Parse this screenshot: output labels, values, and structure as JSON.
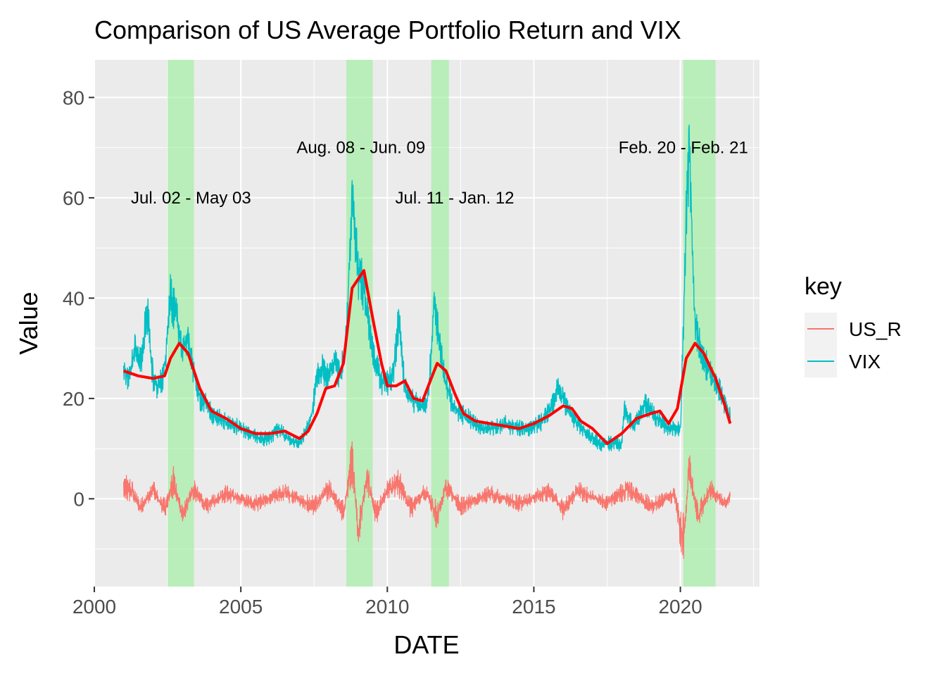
{
  "chart_data": {
    "type": "line",
    "title": "Comparison of US Average Portfolio Return and VIX",
    "xlabel": "DATE",
    "ylabel": "Value",
    "xlim": [
      2000.0,
      2022.7
    ],
    "ylim": [
      -17.5,
      87.5
    ],
    "x_ticks": [
      2000,
      2005,
      2010,
      2015,
      2020
    ],
    "x_tick_labels": [
      "2000",
      "2005",
      "2010",
      "2015",
      "2020"
    ],
    "y_ticks": [
      0,
      20,
      40,
      60,
      80
    ],
    "y_tick_labels": [
      "0",
      "20",
      "40",
      "60",
      "80"
    ],
    "grid": true,
    "panel_background": "#ebebeb",
    "legend": {
      "title": "key",
      "position": "right",
      "entries": [
        {
          "label": "US_R",
          "color": "#f8766d"
        },
        {
          "label": "VIX",
          "color": "#00bfc4"
        }
      ]
    },
    "shaded_periods": [
      {
        "start": 2002.5,
        "end": 2003.4,
        "label": "Jul. 02 - May 03",
        "label_x": 2003.3,
        "label_y": 60
      },
      {
        "start": 2008.6,
        "end": 2009.5,
        "label": "Aug. 08 - Jun. 09",
        "label_x": 2009.1,
        "label_y": 70
      },
      {
        "start": 2011.5,
        "end": 2012.1,
        "label": "Jul. 11 - Jan. 12",
        "label_x": 2012.3,
        "label_y": 60
      },
      {
        "start": 2020.1,
        "end": 2021.2,
        "label": "Feb. 20 - Feb. 21",
        "label_x": 2020.1,
        "label_y": 70
      }
    ],
    "shade_color": "#90ee90",
    "series": [
      {
        "name": "VIX",
        "color": "#00bfc4",
        "x": [
          2001.0,
          2001.2,
          2001.4,
          2001.6,
          2001.8,
          2002.0,
          2002.2,
          2002.4,
          2002.6,
          2002.8,
          2003.0,
          2003.2,
          2003.4,
          2003.6,
          2003.8,
          2004.0,
          2004.3,
          2004.6,
          2005.0,
          2005.3,
          2005.6,
          2006.0,
          2006.3,
          2006.6,
          2007.0,
          2007.2,
          2007.4,
          2007.6,
          2007.8,
          2008.0,
          2008.2,
          2008.4,
          2008.6,
          2008.8,
          2009.0,
          2009.2,
          2009.4,
          2009.6,
          2009.8,
          2010.0,
          2010.2,
          2010.4,
          2010.6,
          2010.8,
          2011.0,
          2011.2,
          2011.4,
          2011.6,
          2011.8,
          2012.0,
          2012.2,
          2012.5,
          2012.8,
          2013.2,
          2013.6,
          2014.0,
          2014.4,
          2014.8,
          2015.2,
          2015.6,
          2015.8,
          2016.0,
          2016.2,
          2016.5,
          2016.8,
          2017.2,
          2017.6,
          2018.0,
          2018.1,
          2018.4,
          2018.8,
          2019.2,
          2019.6,
          2019.9,
          2020.0,
          2020.2,
          2020.3,
          2020.5,
          2020.8,
          2021.0,
          2021.3,
          2021.6,
          2021.7
        ],
        "values": [
          26,
          24,
          30,
          27,
          38,
          24,
          22,
          26,
          40,
          36,
          30,
          32,
          25,
          20,
          19,
          17,
          16,
          15,
          14,
          13,
          12,
          12,
          14,
          12,
          11,
          13,
          16,
          24,
          26,
          24,
          28,
          24,
          32,
          60,
          45,
          42,
          32,
          27,
          23,
          23,
          25,
          36,
          22,
          20,
          19,
          18,
          20,
          40,
          30,
          23,
          19,
          17,
          16,
          14,
          14,
          15,
          14,
          14,
          15,
          18,
          22,
          20,
          17,
          15,
          13,
          11,
          11,
          11,
          18,
          14,
          19,
          16,
          14,
          14,
          13,
          55,
          70,
          35,
          28,
          25,
          22,
          18,
          16
        ]
      },
      {
        "name": "US_R",
        "color": "#f8766d",
        "x": [
          2001.0,
          2001.3,
          2001.6,
          2002.0,
          2002.4,
          2002.7,
          2003.0,
          2003.4,
          2003.8,
          2004.5,
          2005.5,
          2006.5,
          2007.5,
          2008.0,
          2008.5,
          2008.8,
          2009.0,
          2009.3,
          2009.6,
          2010.0,
          2010.4,
          2010.8,
          2011.3,
          2011.7,
          2012.0,
          2012.5,
          2013.5,
          2014.5,
          2015.5,
          2016.0,
          2016.5,
          2017.5,
          2018.2,
          2019.0,
          2019.8,
          2020.1,
          2020.3,
          2020.6,
          2021.0,
          2021.5,
          2021.7
        ],
        "values": [
          2.5,
          1.5,
          -2.0,
          2.0,
          -2.5,
          3.5,
          -3.0,
          2.0,
          -1.5,
          1.0,
          -1.0,
          1.2,
          -1.5,
          2.0,
          -3.0,
          8.0,
          -7.0,
          4.5,
          -3.0,
          1.5,
          3.0,
          -2.0,
          1.5,
          -3.5,
          2.5,
          -1.5,
          1.0,
          -1.0,
          1.5,
          -2.0,
          1.5,
          -0.8,
          2.0,
          -1.5,
          1.0,
          -9.0,
          6.0,
          -4.0,
          2.0,
          -1.0,
          0.5
        ]
      },
      {
        "name": "",
        "color": "#ff0000",
        "x": [
          2001.0,
          2001.5,
          2002.0,
          2002.4,
          2002.6,
          2002.9,
          2003.2,
          2003.6,
          2004.0,
          2004.5,
          2005.0,
          2005.5,
          2006.0,
          2006.5,
          2007.0,
          2007.3,
          2007.6,
          2007.9,
          2008.2,
          2008.5,
          2008.8,
          2009.2,
          2009.5,
          2009.8,
          2010.0,
          2010.3,
          2010.6,
          2010.9,
          2011.2,
          2011.5,
          2011.7,
          2012.0,
          2012.3,
          2012.6,
          2013.0,
          2013.5,
          2014.0,
          2014.5,
          2015.0,
          2015.5,
          2016.0,
          2016.3,
          2016.6,
          2017.0,
          2017.5,
          2018.0,
          2018.5,
          2019.0,
          2019.3,
          2019.6,
          2019.9,
          2020.2,
          2020.5,
          2020.8,
          2021.2,
          2021.5,
          2021.7
        ],
        "values": [
          25.5,
          24.5,
          24.0,
          24.5,
          28.0,
          31.0,
          29.0,
          22.0,
          17.5,
          16.0,
          14.0,
          13.0,
          13.0,
          13.5,
          12.0,
          13.5,
          17.0,
          22.0,
          22.5,
          27.0,
          42.0,
          45.5,
          36.0,
          27.0,
          22.5,
          22.5,
          23.5,
          20.0,
          19.5,
          24.0,
          27.0,
          25.5,
          21.0,
          17.0,
          15.5,
          15.0,
          14.5,
          14.0,
          15.0,
          16.5,
          18.5,
          18.0,
          15.5,
          14.0,
          11.0,
          13.0,
          16.0,
          17.0,
          17.5,
          15.0,
          18.0,
          28.0,
          31.0,
          29.0,
          24.0,
          19.0,
          15.0
        ]
      }
    ]
  }
}
